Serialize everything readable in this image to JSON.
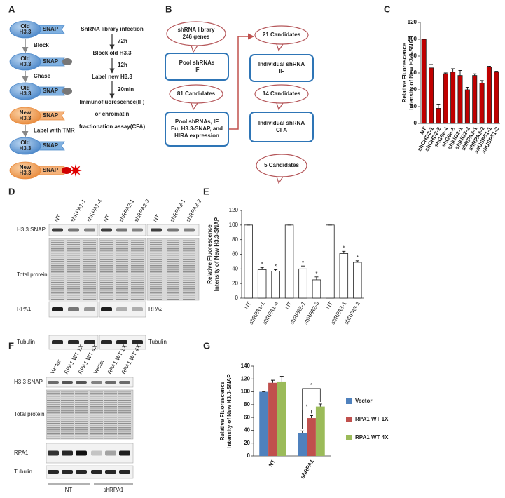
{
  "panel_labels": [
    "A",
    "B",
    "C",
    "D",
    "E",
    "F",
    "G"
  ],
  "diagram_a": {
    "states": [
      {
        "lines": [
          "Old",
          "H3.3"
        ],
        "tag": "SNAP"
      },
      {
        "lines": [
          "Old",
          "H3.3"
        ],
        "tag": "SNAP"
      },
      {
        "lines": [
          "Old",
          "H3.3"
        ],
        "tag": "SNAP"
      },
      {
        "lines": [
          "New",
          "H3.3"
        ],
        "tag": "SNAP"
      },
      {
        "lines": [
          "Old",
          "H3.3"
        ],
        "tag": "SNAP"
      },
      {
        "lines": [
          "New",
          "H3.3"
        ],
        "tag": "SNAP"
      }
    ],
    "actions": [
      "Block",
      "Chase",
      "Label with TMR"
    ],
    "protocol": [
      "ShRNA library infection",
      "Block old H3.3",
      "Label new H3.3",
      "Immunofluorescence(IF)",
      "or chromatin",
      "fractionation assay(CFA)"
    ],
    "intervals": [
      "72h",
      "12h",
      "20min"
    ]
  },
  "diagram_b": {
    "nodes": [
      {
        "lines": [
          "shRNA library",
          "246 genes"
        ]
      },
      {
        "lines": [
          "Pool shRNAs",
          "IF"
        ]
      },
      {
        "lines": [
          "81 Candidates"
        ]
      },
      {
        "lines": [
          "Pool shRNAs, IF",
          "Eu, H3.3-SNAP, and",
          "HIRA expression"
        ]
      },
      {
        "lines": [
          "21 Candidates"
        ]
      },
      {
        "lines": [
          "Individual shRNA",
          "IF"
        ]
      },
      {
        "lines": [
          "14 Candidates"
        ]
      },
      {
        "lines": [
          "Individual shRNA",
          "CFA"
        ]
      },
      {
        "lines": [
          "5 Candidates"
        ]
      }
    ]
  },
  "blot_d": {
    "lanes": [
      "NT",
      "shRPA1-1",
      "shRPA1-4",
      "NT",
      "shRPA2-1",
      "shRPA2-3",
      "NT",
      "shRPA3-1",
      "shRPA3-2"
    ],
    "row_labels": [
      "H3.3 SNAP",
      "Total protein",
      "RPA1",
      "Tubulin"
    ],
    "side_labels": [
      "RPA2",
      "Tubulin"
    ]
  },
  "blot_f": {
    "lanes": [
      "Vector",
      "RPA1 WT 1X",
      "RPA1 WT 4X",
      "Vector",
      "RPA1 WT 1X",
      "RPA1 WT 4X"
    ],
    "row_labels": [
      "H3.3 SNAP",
      "Total protein",
      "RPA1",
      "Tubulin"
    ],
    "groups": [
      "NT",
      "shRPA1"
    ]
  },
  "chart_data": [
    {
      "type": "bar",
      "y_label": [
        "Relative Fluorescence",
        "Intensity of New H3.3-SNAP"
      ],
      "categories": [
        "NT",
        "shCHD2-1",
        "shCHD2-2",
        "shG9a-4",
        "shG9a-5",
        "shING2-1",
        "shING2-2",
        "shRPA3-1",
        "shRPA3-2",
        "shUSP51-1",
        "shUSP51-2"
      ],
      "values": [
        100,
        66,
        18,
        59,
        61,
        57,
        40,
        57,
        48,
        67,
        61
      ],
      "errors": [
        0,
        4,
        5,
        1,
        4,
        6,
        3,
        2,
        3,
        1,
        1
      ],
      "color": "#c00000",
      "ylim": [
        0,
        120
      ],
      "yticks": [
        0,
        20,
        40,
        60,
        80,
        100,
        120
      ]
    },
    {
      "type": "bar",
      "y_label": [
        "Relative Fluorescence",
        "Intensity of New H3.3-SNAP"
      ],
      "categories": [
        "NT",
        "shRPA1-1",
        "shRPA1-4",
        "NT",
        "shRPA2-1",
        "shRPA2-3",
        "NT",
        "shRPA3-1",
        "shRPA3-2"
      ],
      "values": [
        100,
        39,
        37,
        100,
        40,
        25,
        100,
        61,
        49
      ],
      "errors": [
        0,
        3,
        2,
        0,
        4,
        4,
        0,
        3,
        2
      ],
      "markers": [
        null,
        "*",
        "*",
        null,
        "*",
        "*",
        null,
        "*",
        "*"
      ],
      "color": "#ffffff",
      "ylim": [
        0,
        120
      ],
      "yticks": [
        0,
        20,
        40,
        60,
        80,
        100,
        120
      ]
    },
    {
      "type": "bar",
      "y_label": [
        "Relative Fluorescence",
        "Intensity of New H3.3-SNAP"
      ],
      "categories": [
        "NT",
        "shRPA1"
      ],
      "series": [
        {
          "name": "Vector",
          "color": "#4f81bd",
          "values": [
            100,
            36
          ],
          "errors": [
            0,
            3
          ]
        },
        {
          "name": "RPA1 WT 1X",
          "color": "#c0504d",
          "values": [
            114,
            59
          ],
          "errors": [
            4,
            4
          ]
        },
        {
          "name": "RPA1 WT 4X",
          "color": "#9bbb59",
          "values": [
            116,
            77
          ],
          "errors": [
            8,
            4
          ]
        }
      ],
      "annotations": [
        "*",
        "*"
      ],
      "legend": "right",
      "ylim": [
        0,
        140
      ],
      "yticks": [
        0,
        20,
        40,
        60,
        80,
        100,
        120,
        140
      ]
    }
  ]
}
